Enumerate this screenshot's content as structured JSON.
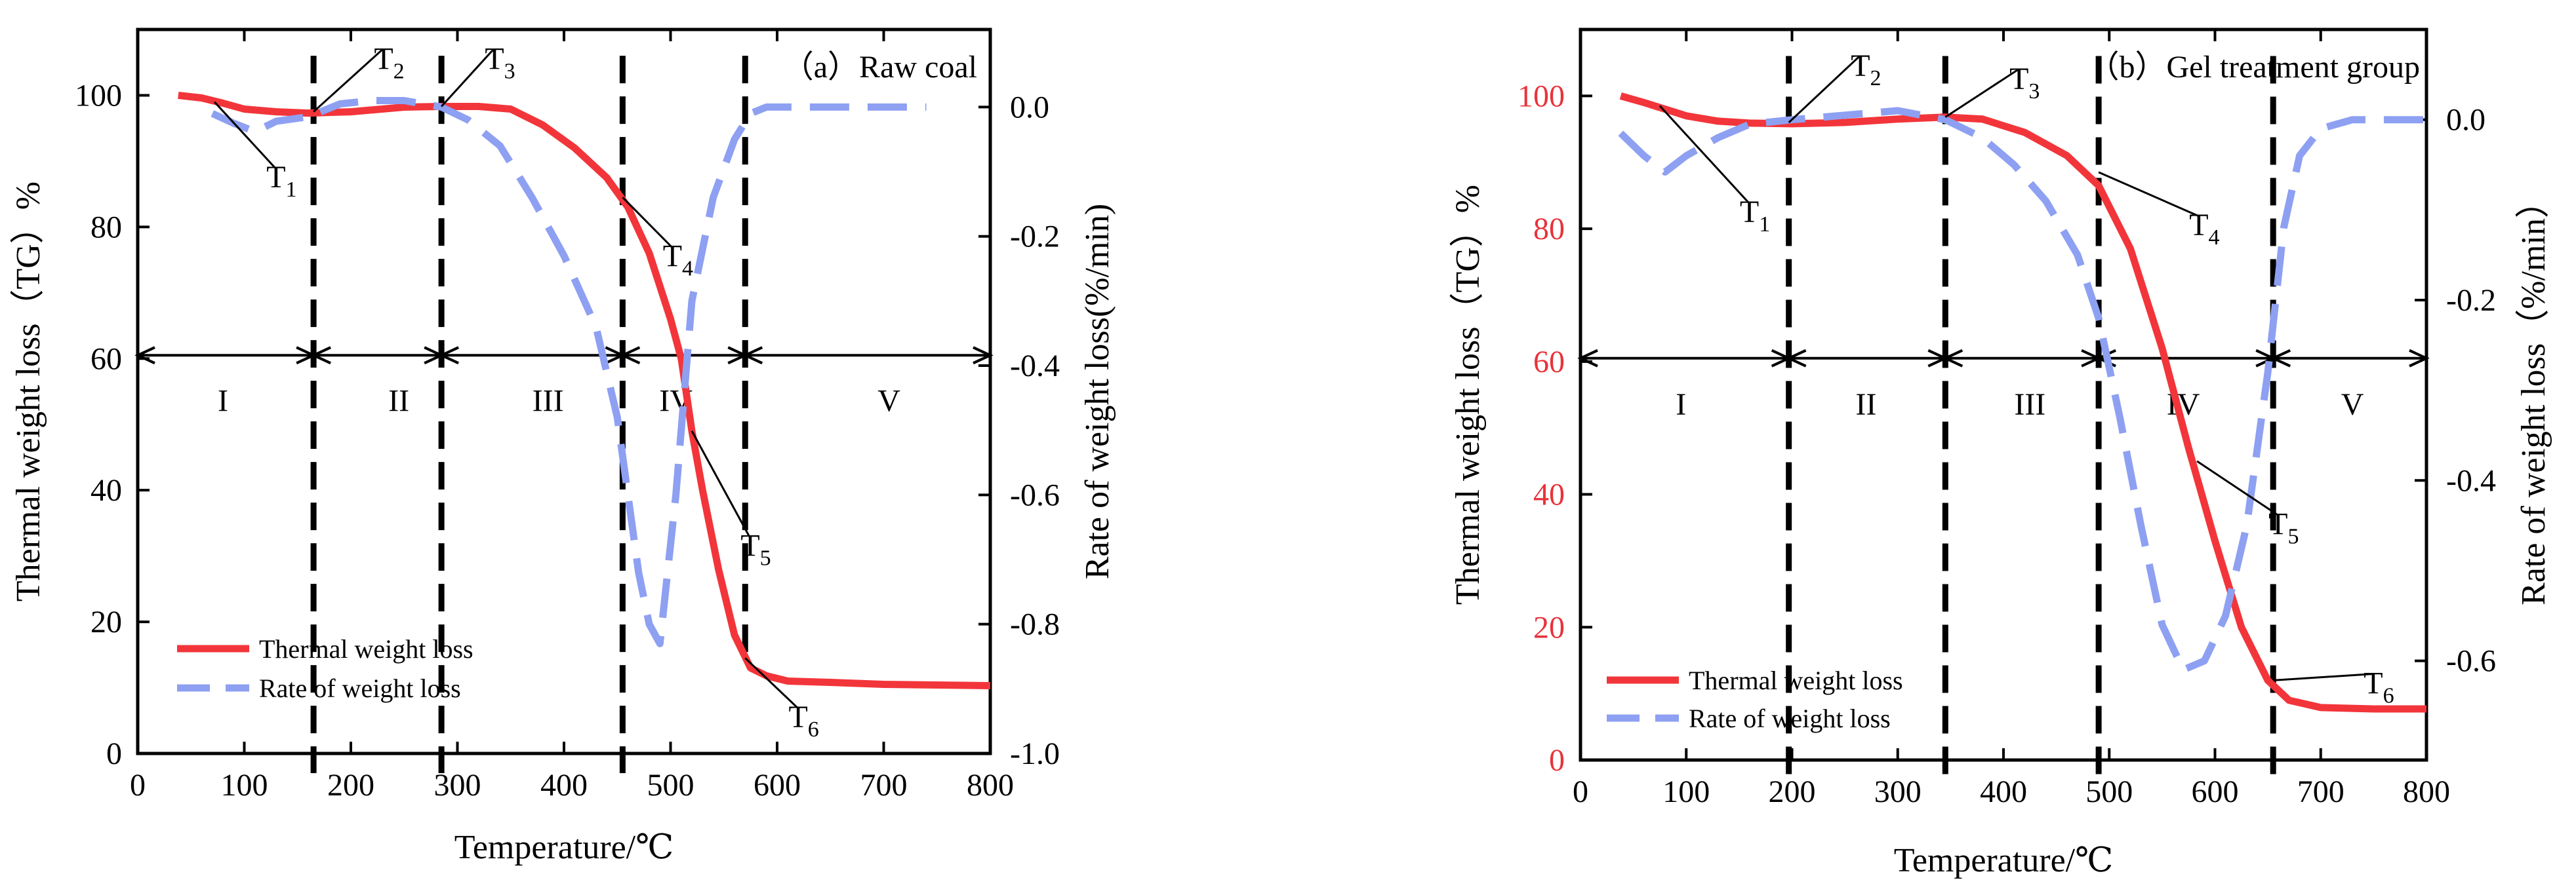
{
  "chart_data": [
    {
      "type": "line",
      "title": "（a）Raw coal",
      "xlabel": "Temperature/℃",
      "ylabel": "Thermal weight loss（TG）%",
      "ylabel2": "Rate of weight loss(%/min)",
      "xlim": [
        0,
        800
      ],
      "ylim": [
        0,
        110
      ],
      "ylim2": [
        -1.0,
        0.12
      ],
      "xticks": [
        "0",
        "100",
        "200",
        "300",
        "400",
        "500",
        "600",
        "700",
        "800"
      ],
      "yticks": [
        "0",
        "20",
        "40",
        "60",
        "80",
        "100"
      ],
      "y2ticks": [
        "-1.0",
        "-0.8",
        "-0.6",
        "-0.4",
        "-0.2",
        "0.0"
      ],
      "y2tick_values": [
        -1.0,
        -0.8,
        -0.6,
        -0.4,
        -0.2,
        0.0
      ],
      "series": [
        {
          "name": "Thermal weight loss",
          "axis": "left",
          "color": "#f2353a",
          "x": [
            38,
            60,
            80,
            100,
            130,
            160,
            200,
            250,
            285,
            320,
            350,
            380,
            410,
            440,
            460,
            480,
            500,
            510,
            520,
            530,
            545,
            560,
            575,
            590,
            610,
            650,
            700,
            750,
            800
          ],
          "y": [
            100,
            99.6,
            98.8,
            97.9,
            97.5,
            97.3,
            97.5,
            98.2,
            98.3,
            98.3,
            97.9,
            95.5,
            92,
            87.5,
            83,
            76,
            66,
            60,
            49,
            40,
            28,
            18,
            13,
            11.8,
            11,
            10.8,
            10.5,
            10.4,
            10.3
          ]
        },
        {
          "name": "Rate of weight loss",
          "axis": "right",
          "color": "#8ea0f2",
          "x": [
            70,
            90,
            110,
            130,
            160,
            190,
            220,
            250,
            285,
            310,
            340,
            370,
            400,
            430,
            450,
            460,
            470,
            480,
            490,
            505,
            520,
            540,
            560,
            575,
            590,
            610,
            650,
            700,
            740
          ],
          "y": [
            -0.01,
            -0.025,
            -0.038,
            -0.022,
            -0.015,
            0.005,
            0.01,
            0.01,
            0.0,
            -0.02,
            -0.06,
            -0.14,
            -0.23,
            -0.34,
            -0.48,
            -0.6,
            -0.72,
            -0.8,
            -0.83,
            -0.6,
            -0.3,
            -0.14,
            -0.05,
            -0.01,
            0.0,
            0.0,
            0.0,
            0.0,
            0.0
          ]
        }
      ],
      "dividers": [
        165,
        285,
        455,
        570
      ],
      "stage_arrow_y": 60.5,
      "stages": [
        "I",
        "II",
        "III",
        "IV",
        "V"
      ],
      "stage_label_y": 52,
      "stage_x": [
        80,
        245,
        385,
        505,
        705
      ],
      "markers": [
        {
          "label": "T",
          "sub": "1",
          "point": [
            72,
            99
          ],
          "text": [
            135,
            86
          ]
        },
        {
          "label": "T",
          "sub": "2",
          "point": [
            165,
            97.5
          ],
          "text": [
            236,
            104
          ]
        },
        {
          "label": "T",
          "sub": "3",
          "point": [
            285,
            98.3
          ],
          "text": [
            340,
            104
          ]
        },
        {
          "label": "T",
          "sub": "4",
          "point": [
            455,
            84.5
          ],
          "text": [
            507,
            74
          ]
        },
        {
          "label": "T",
          "sub": "5",
          "point": [
            520,
            49
          ],
          "text": [
            580,
            30
          ]
        },
        {
          "label": "T",
          "sub": "6",
          "point": [
            570,
            14.5
          ],
          "text": [
            625,
            4
          ]
        }
      ],
      "legend": [
        "Thermal weight loss",
        "Rate of weight loss"
      ]
    },
    {
      "type": "line",
      "title": "（b）Gel treatment group",
      "xlabel": "Temperature/℃",
      "ylabel": "Thermal weight loss（TG）%",
      "ylabel2": "Rate of weight loss（%/min）",
      "xlim": [
        0,
        800
      ],
      "ylim": [
        0,
        110
      ],
      "ylim2": [
        -0.71,
        0.1
      ],
      "xticks": [
        "0",
        "100",
        "200",
        "300",
        "400",
        "500",
        "600",
        "700",
        "800"
      ],
      "yticks": [
        "0",
        "20",
        "40",
        "60",
        "80",
        "100"
      ],
      "y2ticks": [
        "-0.6",
        "-0.4",
        "-0.2",
        "0.0"
      ],
      "y2tick_values": [
        -0.6,
        -0.4,
        -0.2,
        0.0
      ],
      "series": [
        {
          "name": "Thermal weight loss",
          "axis": "left",
          "color": "#f2353a",
          "x": [
            38,
            60,
            80,
            100,
            130,
            160,
            200,
            250,
            300,
            345,
            380,
            420,
            460,
            490,
            520,
            550,
            575,
            600,
            625,
            650,
            670,
            700,
            750,
            800
          ],
          "y": [
            100,
            99,
            98,
            97,
            96.2,
            95.9,
            95.8,
            96,
            96.5,
            96.8,
            96.5,
            94.5,
            91,
            86.5,
            77,
            62,
            47,
            33,
            20,
            12,
            9,
            7.9,
            7.7,
            7.7
          ]
        },
        {
          "name": "Rate of weight loss",
          "axis": "right",
          "color": "#8ea0f2",
          "x": [
            38,
            60,
            80,
            100,
            130,
            160,
            200,
            250,
            300,
            345,
            380,
            410,
            440,
            470,
            490,
            510,
            530,
            550,
            570,
            590,
            610,
            630,
            650,
            665,
            680,
            700,
            730,
            760,
            800
          ],
          "y": [
            -0.015,
            -0.04,
            -0.058,
            -0.04,
            -0.02,
            -0.005,
            0.0,
            0.005,
            0.01,
            0.0,
            -0.02,
            -0.05,
            -0.09,
            -0.15,
            -0.22,
            -0.33,
            -0.45,
            -0.56,
            -0.61,
            -0.6,
            -0.55,
            -0.45,
            -0.28,
            -0.12,
            -0.04,
            -0.01,
            0.0,
            0.0,
            0.0
          ]
        }
      ],
      "dividers": [
        197,
        345,
        490,
        655
      ],
      "stage_arrow_y": 60.5,
      "stages": [
        "I",
        "II",
        "III",
        "IV",
        "V"
      ],
      "stage_label_y": 52,
      "stage_x": [
        95,
        270,
        425,
        570,
        730
      ],
      "markers": [
        {
          "label": "T",
          "sub": "1",
          "point": [
            75,
            98.5
          ],
          "text": [
            165,
            81
          ]
        },
        {
          "label": "T",
          "sub": "2",
          "point": [
            197,
            96
          ],
          "text": [
            270,
            103
          ]
        },
        {
          "label": "T",
          "sub": "3",
          "point": [
            345,
            96.8
          ],
          "text": [
            420,
            101
          ]
        },
        {
          "label": "T",
          "sub": "4",
          "point": [
            490,
            88.5
          ],
          "text": [
            590,
            79
          ]
        },
        {
          "label": "T",
          "sub": "5",
          "point": [
            583,
            45
          ],
          "text": [
            665,
            34
          ]
        },
        {
          "label": "T",
          "sub": "6",
          "point": [
            655,
            12
          ],
          "text": [
            755,
            10
          ]
        }
      ],
      "legend": [
        "Thermal weight loss",
        "Rate of weight loss"
      ]
    }
  ]
}
